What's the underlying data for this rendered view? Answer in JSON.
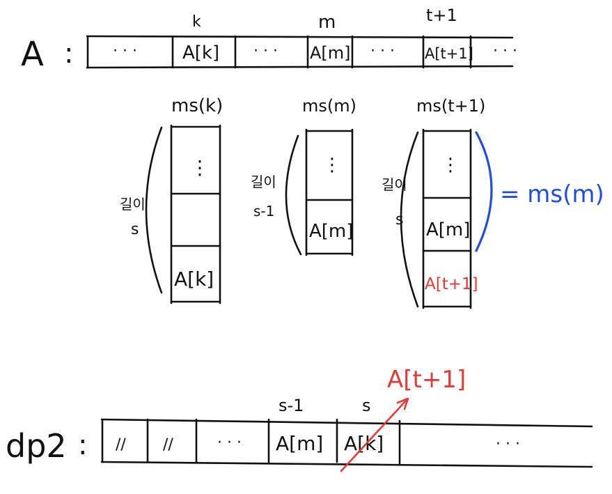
{
  "array_a": {
    "label": "A",
    "colon": ":",
    "index_labels": [
      "k",
      "m",
      "t+1"
    ],
    "cells": [
      "· · ·",
      "A[k]",
      "· · ·",
      "A[m]",
      "· · ·",
      "A[t+1]",
      "· · ·"
    ]
  },
  "subsequences": [
    {
      "title": "ms(k)",
      "length_label": "길이",
      "length_value": "s",
      "bottom_cell": "A[k]",
      "top_dots": "⋮"
    },
    {
      "title": "ms(m)",
      "length_label": "길이",
      "length_value": "s-1",
      "bottom_cell": "A[m]",
      "top_dots": "⋮"
    },
    {
      "title": "ms(t+1)",
      "length_label": "길이",
      "length_value": "s",
      "middle_cell": "A[m]",
      "bottom_cell": "A[t+1]",
      "top_dots": "⋮"
    }
  ],
  "brace_annotation": "= ms(m)",
  "array_dp2": {
    "label": "dp2",
    "colon": ":",
    "index_labels": [
      "s-1",
      "s"
    ],
    "cells": [
      "//",
      "//",
      "· · ·",
      "A[m]",
      "A[k]",
      "· · ·"
    ],
    "replacement": "A[t+1]"
  },
  "colors": {
    "ink": "#111111",
    "highlight_red": "#e53935",
    "annotation_blue": "#1f4fd6"
  }
}
